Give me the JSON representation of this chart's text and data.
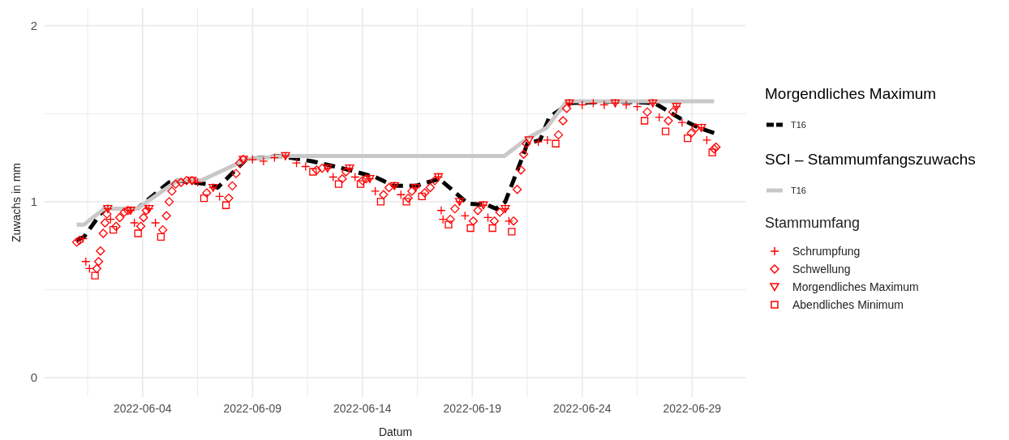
{
  "chart_data": {
    "type": "line",
    "xlabel": "Datum",
    "ylabel": "Zuwachs in mm",
    "annotations": [
      "Morgendliches Maximum",
      "SCI – Stammumfangszuwachs",
      "Stammumfang"
    ],
    "xlim": [
      "2022-05-30T13:00",
      "2022-07-01T11:00"
    ],
    "xticks": [
      {
        "value": "2022-06-01T12:00",
        "label": null
      },
      "2022-06-04",
      {
        "value": "2022-06-06T12:00",
        "label": null
      },
      "2022-06-09",
      {
        "value": "2022-06-11T12:00",
        "label": null
      },
      "2022-06-14",
      {
        "value": "2022-06-16T12:00",
        "label": null
      },
      "2022-06-19",
      {
        "value": "2022-06-21T12:00",
        "label": null
      },
      "2022-06-24",
      {
        "value": "2022-06-26T12:00",
        "label": null
      },
      "2022-06-29"
    ],
    "ylim": [
      -0.11,
      2.1
    ],
    "yticks": [
      0,
      {
        "value": 0.5,
        "label": null
      },
      1,
      {
        "value": 1.5,
        "label": null
      },
      2
    ],
    "grid": true,
    "legend": "right",
    "series": [
      {
        "name": "T16",
        "line_style": "dashed",
        "marker": "none",
        "color": "#000000",
        "x": [
          "2022-06-01T00:00",
          "2022-06-01T08:00",
          "2022-06-02T06:00",
          "2022-06-03T18:00",
          "2022-06-05T05:00",
          "2022-06-05T14:00",
          "2022-06-06T22:00",
          "2022-06-07T10:00",
          "2022-06-08T17:00",
          "2022-06-10T05:00",
          "2022-06-11T17:00",
          "2022-06-13T02:00",
          "2022-06-14T14:00",
          "2022-06-15T10:00",
          "2022-06-16T10:00",
          "2022-06-17T12:00",
          "2022-06-18T19:00",
          "2022-06-19T17:00",
          "2022-06-20T02:00",
          "2022-06-20T12:00",
          "2022-06-21T05:00",
          "2022-06-21T12:00",
          "2022-06-22T02:00",
          "2022-06-22T12:00",
          "2022-06-23T10:00",
          "2022-06-25T14:00",
          "2022-06-27T07:00",
          "2022-06-28T12:00",
          "2022-06-29T07:00",
          "2022-06-30T00:00"
        ],
        "values": [
          0.78,
          0.8,
          0.96,
          0.96,
          1.11,
          1.12,
          1.1,
          1.08,
          1.24,
          1.26,
          1.23,
          1.19,
          1.14,
          1.09,
          1.09,
          1.13,
          0.99,
          0.98,
          0.96,
          1.0,
          1.23,
          1.33,
          1.35,
          1.48,
          1.56,
          1.57,
          1.56,
          1.47,
          1.42,
          1.39
        ]
      },
      {
        "name": "T16",
        "line_style": "solid",
        "marker": "none",
        "color": "#c8c8c8",
        "x": [
          "2022-06-01T00:00",
          "2022-06-01T08:00",
          "2022-06-02T06:00",
          "2022-06-03T18:00",
          "2022-06-05T14:00",
          "2022-06-06T16:00",
          "2022-06-08T17:00",
          "2022-06-10T09:00",
          "2022-06-20T11:00",
          "2022-06-21T12:00",
          "2022-06-22T09:00",
          "2022-06-23T07:00",
          "2022-06-30T00:00"
        ],
        "values": [
          0.87,
          0.87,
          0.96,
          0.96,
          1.12,
          1.12,
          1.24,
          1.26,
          1.26,
          1.36,
          1.42,
          1.57,
          1.57
        ]
      },
      {
        "name": "Schrumpfung",
        "type": "scatter",
        "marker": "cross",
        "color": "#ff0000",
        "x": [
          "2022-06-01T07:00",
          "2022-06-01T10:00",
          "2022-06-01T14:00",
          "2022-06-02T10:00",
          "2022-06-02T13:00",
          "2022-06-03T11:00",
          "2022-06-03T15:00",
          "2022-06-04T07:00",
          "2022-06-04T14:00",
          "2022-06-06T12:00",
          "2022-06-07T05:00",
          "2022-06-07T12:00",
          "2022-06-09T00:00",
          "2022-06-09T12:00",
          "2022-06-10T00:00",
          "2022-06-10T12:00",
          "2022-06-11T00:00",
          "2022-06-11T10:00",
          "2022-06-12T10:00",
          "2022-06-12T16:00",
          "2022-06-13T10:00",
          "2022-06-13T16:00",
          "2022-06-14T08:00",
          "2022-06-14T14:00",
          "2022-06-15T11:00",
          "2022-06-15T18:00",
          "2022-06-16T10:00",
          "2022-06-17T11:00",
          "2022-06-17T14:00",
          "2022-06-17T16:00",
          "2022-06-18T10:00",
          "2022-06-18T16:00",
          "2022-06-19T12:00",
          "2022-06-19T17:00",
          "2022-06-20T12:00",
          "2022-06-20T16:00",
          "2022-06-22T00:00",
          "2022-06-22T10:00",
          "2022-06-23T10:00",
          "2022-06-24T00:00",
          "2022-06-24T12:00",
          "2022-06-25T00:00",
          "2022-06-25T12:00",
          "2022-06-26T00:00",
          "2022-06-26T12:00",
          "2022-06-27T05:00",
          "2022-06-27T12:00",
          "2022-06-28T07:00",
          "2022-06-28T13:00",
          "2022-06-29T10:00",
          "2022-06-29T16:00"
        ],
        "values": [
          0.79,
          0.66,
          0.62,
          0.96,
          0.9,
          0.95,
          0.88,
          0.96,
          0.88,
          1.11,
          1.08,
          1.03,
          1.24,
          1.23,
          1.25,
          1.26,
          1.22,
          1.2,
          1.19,
          1.14,
          1.19,
          1.14,
          1.13,
          1.06,
          1.09,
          1.04,
          1.08,
          1.14,
          0.95,
          0.9,
          1.0,
          0.92,
          0.98,
          0.91,
          0.96,
          0.89,
          1.34,
          1.35,
          1.56,
          1.55,
          1.56,
          1.55,
          1.56,
          1.55,
          1.54,
          1.56,
          1.48,
          1.54,
          1.45,
          1.42,
          1.35
        ]
      },
      {
        "name": "Schwellung",
        "type": "scatter",
        "marker": "diamond",
        "color": "#ff0000",
        "x": [
          "2022-06-01T00:00",
          "2022-06-01T03:00",
          "2022-06-01T22:00",
          "2022-06-02T00:00",
          "2022-06-02T02:00",
          "2022-06-02T05:00",
          "2022-06-02T07:00",
          "2022-06-02T09:00",
          "2022-06-02T19:00",
          "2022-06-02T23:00",
          "2022-06-03T04:00",
          "2022-06-03T08:00",
          "2022-06-03T22:00",
          "2022-06-04T01:00",
          "2022-06-04T04:00",
          "2022-06-04T22:00",
          "2022-06-05T02:00",
          "2022-06-05T05:00",
          "2022-06-05T08:00",
          "2022-06-05T12:00",
          "2022-06-05T18:00",
          "2022-06-06T00:00",
          "2022-06-06T06:00",
          "2022-06-06T22:00",
          "2022-06-07T22:00",
          "2022-06-08T02:00",
          "2022-06-08T06:00",
          "2022-06-08T10:00",
          "2022-06-08T14:00",
          "2022-06-11T22:00",
          "2022-06-12T04:00",
          "2022-06-13T02:00",
          "2022-06-13T06:00",
          "2022-06-14T00:00",
          "2022-06-14T04:00",
          "2022-06-14T23:00",
          "2022-06-15T05:00",
          "2022-06-16T02:00",
          "2022-06-16T06:00",
          "2022-06-16T20:00",
          "2022-06-17T02:00",
          "2022-06-17T07:00",
          "2022-06-18T00:00",
          "2022-06-18T05:00",
          "2022-06-19T01:00",
          "2022-06-19T06:00",
          "2022-06-20T00:00",
          "2022-06-20T06:00",
          "2022-06-20T21:00",
          "2022-06-21T01:00",
          "2022-06-21T05:00",
          "2022-06-21T08:00",
          "2022-06-21T11:00",
          "2022-06-22T22:00",
          "2022-06-23T03:00",
          "2022-06-23T07:00",
          "2022-06-26T23:00",
          "2022-06-27T22:00",
          "2022-06-28T03:00",
          "2022-06-28T23:00",
          "2022-06-29T04:00",
          "2022-06-30T00:00",
          "2022-06-30T02:00"
        ],
        "values": [
          0.77,
          0.78,
          0.62,
          0.66,
          0.72,
          0.82,
          0.88,
          0.93,
          0.86,
          0.91,
          0.94,
          0.95,
          0.86,
          0.91,
          0.95,
          0.84,
          0.92,
          1.0,
          1.06,
          1.1,
          1.11,
          1.12,
          1.12,
          1.05,
          1.02,
          1.09,
          1.16,
          1.22,
          1.24,
          1.18,
          1.19,
          1.13,
          1.17,
          1.12,
          1.13,
          1.04,
          1.08,
          1.02,
          1.06,
          1.05,
          1.08,
          1.12,
          0.9,
          0.96,
          0.89,
          0.95,
          0.89,
          0.94,
          0.89,
          1.07,
          1.18,
          1.27,
          1.33,
          1.38,
          1.46,
          1.53,
          1.51,
          1.46,
          1.51,
          1.39,
          1.42,
          1.3,
          1.31
        ]
      },
      {
        "name": "Morgendliches Maximum",
        "type": "scatter",
        "marker": "triangle",
        "color": "#ff0000",
        "x": [
          "2022-06-02T10:00",
          "2022-06-03T11:00",
          "2022-06-04T07:00",
          "2022-06-06T06:00",
          "2022-06-07T05:00",
          "2022-06-08T14:00",
          "2022-06-10T12:00",
          "2022-06-12T10:00",
          "2022-06-13T10:00",
          "2022-06-14T08:00",
          "2022-06-15T11:00",
          "2022-06-16T10:00",
          "2022-06-17T11:00",
          "2022-06-18T10:00",
          "2022-06-19T12:00",
          "2022-06-20T12:00",
          "2022-06-21T14:00",
          "2022-06-23T10:00",
          "2022-06-25T12:00",
          "2022-06-27T05:00",
          "2022-06-28T07:00",
          "2022-06-29T10:00"
        ],
        "values": [
          0.96,
          0.95,
          0.96,
          1.12,
          1.08,
          1.24,
          1.26,
          1.19,
          1.19,
          1.13,
          1.09,
          1.08,
          1.14,
          1.0,
          0.98,
          0.96,
          1.35,
          1.56,
          1.56,
          1.56,
          1.54,
          1.42
        ]
      },
      {
        "name": "Abendliches Minimum",
        "type": "scatter",
        "marker": "square",
        "color": "#ff0000",
        "x": [
          "2022-06-01T20:00",
          "2022-06-02T16:00",
          "2022-06-03T19:00",
          "2022-06-04T20:00",
          "2022-06-06T19:00",
          "2022-06-07T19:00",
          "2022-06-11T18:00",
          "2022-06-12T22:00",
          "2022-06-13T22:00",
          "2022-06-14T20:00",
          "2022-06-16T00:00",
          "2022-06-16T17:00",
          "2022-06-17T22:00",
          "2022-06-18T22:00",
          "2022-06-19T22:00",
          "2022-06-20T19:00",
          "2022-06-22T19:00",
          "2022-06-26T20:00",
          "2022-06-27T19:00",
          "2022-06-28T19:00",
          "2022-06-29T22:00"
        ],
        "values": [
          0.58,
          0.84,
          0.82,
          0.8,
          1.02,
          0.98,
          1.17,
          1.1,
          1.1,
          1.0,
          1.0,
          1.03,
          0.87,
          0.85,
          0.85,
          0.83,
          1.33,
          1.46,
          1.4,
          1.36,
          1.28
        ]
      }
    ]
  }
}
